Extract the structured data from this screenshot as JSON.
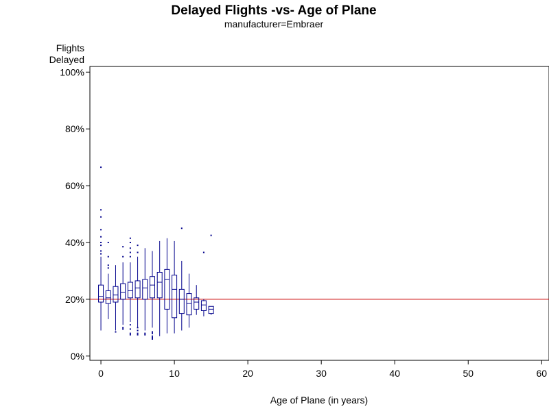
{
  "chart_data": {
    "type": "box",
    "title": "Delayed Flights -vs- Age of Plane",
    "subtitle": "manufacturer=Embraer",
    "ylabel_line1": "Flights",
    "ylabel_line2": "Delayed",
    "xlabel": "Age of Plane (in years)",
    "xlim": [
      -1.5,
      61
    ],
    "ylim": [
      -1.5,
      102
    ],
    "x_ticks": [
      0,
      10,
      20,
      30,
      40,
      50,
      60
    ],
    "x_tick_labels": [
      "0",
      "10",
      "20",
      "30",
      "40",
      "50",
      "60"
    ],
    "y_ticks": [
      0,
      20,
      40,
      60,
      80,
      100
    ],
    "y_tick_labels": [
      "0%",
      "20%",
      "40%",
      "60%",
      "80%",
      "100%"
    ],
    "reference_line": {
      "y": 20,
      "color": "#cc0000"
    },
    "box_color": "#00008b",
    "grid": false,
    "boxes": [
      {
        "x": 0,
        "min": 9,
        "q1": 19,
        "median": 21,
        "q3": 25,
        "max": 35,
        "outliers": [
          66.5,
          51.5,
          49,
          44.5,
          42,
          40,
          39,
          37,
          36
        ]
      },
      {
        "x": 1,
        "min": 13,
        "q1": 18.5,
        "median": 20.5,
        "q3": 23,
        "max": 29,
        "outliers": [
          40,
          35,
          32,
          31
        ]
      },
      {
        "x": 2,
        "min": 9,
        "q1": 19,
        "median": 21.5,
        "q3": 24.5,
        "max": 32,
        "outliers": [
          8.5
        ]
      },
      {
        "x": 3,
        "min": 11,
        "q1": 20,
        "median": 22.5,
        "q3": 25.5,
        "max": 33,
        "outliers": [
          38.5,
          35,
          10,
          9.5
        ]
      },
      {
        "x": 4,
        "min": 12,
        "q1": 20.5,
        "median": 23,
        "q3": 26,
        "max": 33,
        "outliers": [
          41.5,
          40,
          38,
          36.5,
          35,
          11,
          9.5,
          8,
          7.5
        ]
      },
      {
        "x": 5,
        "min": 10,
        "q1": 20.5,
        "median": 24,
        "q3": 26.5,
        "max": 35,
        "outliers": [
          39,
          36.5,
          10,
          9,
          8,
          7.5
        ]
      },
      {
        "x": 6,
        "min": 9,
        "q1": 20,
        "median": 24,
        "q3": 27,
        "max": 38,
        "outliers": [
          8,
          7.5
        ]
      },
      {
        "x": 7,
        "min": 10,
        "q1": 20.5,
        "median": 25,
        "q3": 28,
        "max": 37,
        "outliers": [
          8.5,
          8,
          7,
          6.5,
          6
        ]
      },
      {
        "x": 8,
        "min": 7,
        "q1": 20.5,
        "median": 26,
        "q3": 29.5,
        "max": 40.5,
        "outliers": []
      },
      {
        "x": 9,
        "min": 8,
        "q1": 16.5,
        "median": 27,
        "q3": 30.5,
        "max": 41.5,
        "outliers": []
      },
      {
        "x": 10,
        "min": 8,
        "q1": 13.5,
        "median": 23.5,
        "q3": 28.5,
        "max": 40.5,
        "outliers": []
      },
      {
        "x": 11,
        "min": 9,
        "q1": 15,
        "median": 20,
        "q3": 23.5,
        "max": 33.5,
        "outliers": [
          45
        ]
      },
      {
        "x": 12,
        "min": 10,
        "q1": 14.5,
        "median": 18.5,
        "q3": 22,
        "max": 29,
        "outliers": []
      },
      {
        "x": 13,
        "min": 14.5,
        "q1": 16.5,
        "median": 19,
        "q3": 20.5,
        "max": 25,
        "outliers": []
      },
      {
        "x": 14,
        "min": 14,
        "q1": 16,
        "median": 18,
        "q3": 19.5,
        "max": 20,
        "outliers": [
          36.5
        ]
      },
      {
        "x": 15,
        "min": 14.5,
        "q1": 15,
        "median": 16.5,
        "q3": 17.5,
        "max": 17.5,
        "outliers": [
          42.5
        ]
      }
    ]
  }
}
